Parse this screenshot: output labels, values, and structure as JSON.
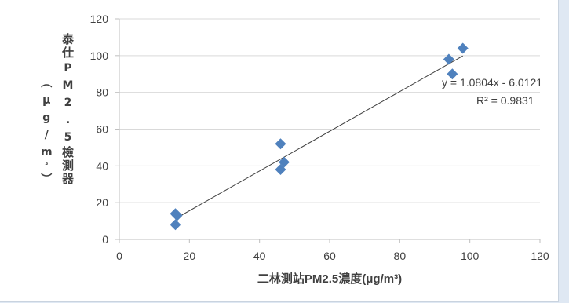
{
  "chart_data": {
    "type": "scatter",
    "title": "",
    "xlabel": "二林測站PM2.5濃度(μg/m³)",
    "ylabel": "泰仕PM2.5檢測器(μg/m³)",
    "xlim": [
      0,
      120
    ],
    "ylim": [
      0,
      120
    ],
    "xticks": [
      "0",
      "20",
      "40",
      "60",
      "80",
      "100",
      "120"
    ],
    "yticks": [
      "0",
      "20",
      "40",
      "60",
      "80",
      "100",
      "120"
    ],
    "grid": "horizontal",
    "legend": "none",
    "series": [
      {
        "points": [
          {
            "x": 16,
            "y": 14
          },
          {
            "x": 16.5,
            "y": 13
          },
          {
            "x": 16,
            "y": 8
          },
          {
            "x": 46,
            "y": 52
          },
          {
            "x": 46,
            "y": 38
          },
          {
            "x": 47,
            "y": 42
          },
          {
            "x": 94,
            "y": 98
          },
          {
            "x": 95,
            "y": 90
          },
          {
            "x": 98,
            "y": 104
          }
        ]
      }
    ],
    "trendline": {
      "type": "linear",
      "slope": 1.0804,
      "intercept": -6.0121,
      "x_range": [
        16,
        98
      ],
      "equation": "y = 1.0804x - 6.0121",
      "r_squared": "R² = 0.9831"
    },
    "colors": {
      "marker": "#4f81bd",
      "trendline": "#404040",
      "grid": "#d9d9d9",
      "axis": "#bfbfbf"
    }
  }
}
